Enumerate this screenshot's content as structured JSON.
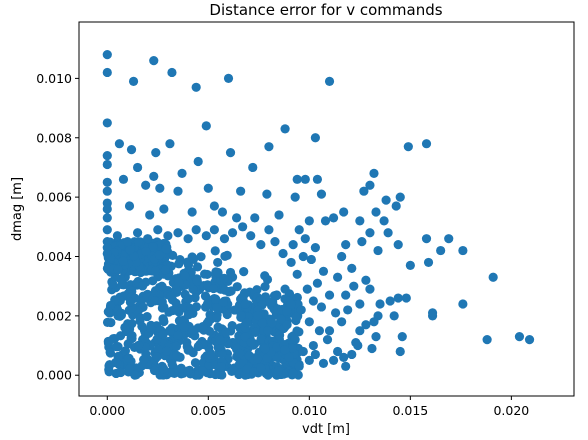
{
  "chart_data": {
    "type": "scatter",
    "title": "Distance error for v commands",
    "xlabel": "vdt [m]",
    "ylabel": "dmag [m]",
    "xlim": [
      -0.0014,
      0.0231
    ],
    "ylim": [
      -0.0007,
      0.0119
    ],
    "xticks": [
      0.0,
      0.005,
      0.01,
      0.015,
      0.02
    ],
    "xtick_labels": [
      "0.000",
      "0.005",
      "0.010",
      "0.015",
      "0.020"
    ],
    "yticks": [
      0.0,
      0.002,
      0.004,
      0.006,
      0.008,
      0.01
    ],
    "ytick_labels": [
      "0.000",
      "0.002",
      "0.004",
      "0.006",
      "0.008",
      "0.010"
    ],
    "grid": false,
    "legend": "none",
    "marker_color": "#1f77b4",
    "series": [
      {
        "points": [
          [
            0.0,
            0.0108
          ],
          [
            0.0,
            0.0102
          ],
          [
            0.0023,
            0.0106
          ],
          [
            0.0032,
            0.0102
          ],
          [
            0.0013,
            0.0099
          ],
          [
            0.0044,
            0.0097
          ],
          [
            0.006,
            0.01
          ],
          [
            0.011,
            0.0099
          ],
          [
            0.0,
            0.0085
          ],
          [
            0.0049,
            0.0084
          ],
          [
            0.0088,
            0.0083
          ],
          [
            0.0103,
            0.008
          ],
          [
            0.0031,
            0.0078
          ],
          [
            0.0006,
            0.0078
          ],
          [
            0.0012,
            0.0076
          ],
          [
            0.0024,
            0.0075
          ],
          [
            0.0061,
            0.0075
          ],
          [
            0.008,
            0.0077
          ],
          [
            0.0,
            0.0074
          ],
          [
            0.0,
            0.0071
          ],
          [
            0.0158,
            0.0078
          ],
          [
            0.0149,
            0.0077
          ],
          [
            0.0045,
            0.0072
          ],
          [
            0.0037,
            0.0068
          ],
          [
            0.0015,
            0.007
          ],
          [
            0.0023,
            0.0067
          ],
          [
            0.0072,
            0.007
          ],
          [
            0.0094,
            0.0066
          ],
          [
            0.0098,
            0.0066
          ],
          [
            0.0104,
            0.0066
          ],
          [
            0.0132,
            0.0068
          ],
          [
            0.013,
            0.0064
          ],
          [
            0.0127,
            0.0062
          ],
          [
            0.0,
            0.0065
          ],
          [
            0.0,
            0.0062
          ],
          [
            0.0008,
            0.0066
          ],
          [
            0.0019,
            0.0064
          ],
          [
            0.0026,
            0.0063
          ],
          [
            0.0035,
            0.0062
          ],
          [
            0.005,
            0.0063
          ],
          [
            0.0066,
            0.0062
          ],
          [
            0.0079,
            0.0061
          ],
          [
            0.0093,
            0.006
          ],
          [
            0.0106,
            0.0061
          ],
          [
            0.0138,
            0.0059
          ],
          [
            0.0145,
            0.006
          ],
          [
            0.0143,
            0.0057
          ],
          [
            0.0133,
            0.0055
          ],
          [
            0.0125,
            0.0052
          ],
          [
            0.0137,
            0.0052
          ],
          [
            0.0117,
            0.0055
          ],
          [
            0.0112,
            0.0053
          ],
          [
            0.0,
            0.0058
          ],
          [
            0.0,
            0.0056
          ],
          [
            0.0,
            0.0053
          ],
          [
            0.0011,
            0.0057
          ],
          [
            0.0021,
            0.0054
          ],
          [
            0.0028,
            0.0056
          ],
          [
            0.0042,
            0.0055
          ],
          [
            0.0053,
            0.0057
          ],
          [
            0.0057,
            0.0055
          ],
          [
            0.0064,
            0.0053
          ],
          [
            0.0073,
            0.0053
          ],
          [
            0.0085,
            0.0054
          ],
          [
            0.01,
            0.0052
          ],
          [
            0.0108,
            0.0052
          ],
          [
            0.0158,
            0.0046
          ],
          [
            0.0169,
            0.0046
          ],
          [
            0.0165,
            0.0042
          ],
          [
            0.0176,
            0.0042
          ],
          [
            0.0191,
            0.0033
          ],
          [
            0.015,
            0.0037
          ],
          [
            0.0144,
            0.0044
          ],
          [
            0.0159,
            0.0038
          ],
          [
            0.0139,
            0.0048
          ],
          [
            0.013,
            0.0048
          ],
          [
            0.0126,
            0.0045
          ],
          [
            0.0134,
            0.0042
          ],
          [
            0.0118,
            0.0044
          ],
          [
            0.0116,
            0.004
          ],
          [
            0.0121,
            0.0036
          ],
          [
            0.0128,
            0.0032
          ],
          [
            0.013,
            0.0029
          ],
          [
            0.0122,
            0.003
          ],
          [
            0.0114,
            0.0033
          ],
          [
            0.0118,
            0.0027
          ],
          [
            0.0125,
            0.0024
          ],
          [
            0.0135,
            0.0024
          ],
          [
            0.0134,
            0.002
          ],
          [
            0.014,
            0.0025
          ],
          [
            0.0144,
            0.0026
          ],
          [
            0.0148,
            0.0026
          ],
          [
            0.0142,
            0.002
          ],
          [
            0.0161,
            0.002
          ],
          [
            0.0176,
            0.0024
          ],
          [
            0.0161,
            0.0021
          ],
          [
            0.0132,
            0.0018
          ],
          [
            0.0128,
            0.0017
          ],
          [
            0.0125,
            0.0015
          ],
          [
            0.0133,
            0.0013
          ],
          [
            0.0146,
            0.0013
          ],
          [
            0.0124,
            0.001
          ],
          [
            0.0131,
            0.0009
          ],
          [
            0.0145,
            0.0008
          ],
          [
            0.0121,
            0.0007
          ],
          [
            0.0117,
            0.0006
          ],
          [
            0.0112,
            0.0005
          ],
          [
            0.0107,
            0.0004
          ],
          [
            0.0118,
            0.0003
          ],
          [
            0.0123,
            0.0011
          ],
          [
            0.0188,
            0.0012
          ],
          [
            0.0204,
            0.0013
          ],
          [
            0.0209,
            0.0012
          ],
          [
            0.0113,
            0.0021
          ],
          [
            0.0106,
            0.0023
          ],
          [
            0.011,
            0.0027
          ],
          [
            0.0104,
            0.0031
          ],
          [
            0.0107,
            0.0035
          ],
          [
            0.0101,
            0.0039
          ],
          [
            0.0103,
            0.0043
          ],
          [
            0.0098,
            0.0046
          ],
          [
            0.0095,
            0.0049
          ],
          [
            0.0092,
            0.0044
          ],
          [
            0.0097,
            0.004
          ],
          [
            0.0091,
            0.0038
          ],
          [
            0.0087,
            0.0041
          ],
          [
            0.0083,
            0.0045
          ],
          [
            0.008,
            0.0049
          ],
          [
            0.0076,
            0.0044
          ],
          [
            0.0071,
            0.0047
          ],
          [
            0.0067,
            0.005
          ],
          [
            0.0062,
            0.0048
          ],
          [
            0.0058,
            0.0046
          ],
          [
            0.0053,
            0.0049
          ],
          [
            0.0049,
            0.0047
          ],
          [
            0.0044,
            0.0049
          ],
          [
            0.004,
            0.0046
          ],
          [
            0.0035,
            0.0048
          ],
          [
            0.003,
            0.0047
          ],
          [
            0.0025,
            0.0049
          ],
          [
            0.002,
            0.0046
          ],
          [
            0.0015,
            0.0048
          ],
          [
            0.001,
            0.0045
          ],
          [
            0.0005,
            0.0047
          ],
          [
            0.0,
            0.0049
          ],
          [
            0.0,
            0.0045
          ],
          [
            0.0,
            0.0043
          ],
          [
            0.0,
            0.0041
          ],
          [
            0.0094,
            0.0034
          ],
          [
            0.0099,
            0.0029
          ],
          [
            0.0102,
            0.0025
          ],
          [
            0.0096,
            0.0022
          ],
          [
            0.01,
            0.0018
          ],
          [
            0.0105,
            0.0015
          ],
          [
            0.0109,
            0.0012
          ],
          [
            0.0102,
            0.001
          ],
          [
            0.0097,
            0.0008
          ],
          [
            0.01,
            0.0005
          ],
          [
            0.0095,
            0.0003
          ],
          [
            0.009,
            0.0006
          ],
          [
            0.0093,
            0.0012
          ],
          [
            0.0089,
            0.0017
          ],
          [
            0.0091,
            0.0024
          ],
          [
            0.0088,
            0.0029
          ],
          [
            0.0103,
            0.0007
          ],
          [
            0.0114,
            0.0008
          ],
          [
            0.011,
            0.0015
          ],
          [
            0.0116,
            0.0018
          ],
          [
            0.0119,
            0.0022
          ]
        ],
        "dense_clusters": [
          {
            "x_range": [
              0.0,
              0.0085
            ],
            "y_range": [
              0.0,
              0.0035
            ]
          },
          {
            "x_range": [
              0.0,
              0.006
            ],
            "y_range": [
              0.0,
              0.0042
            ]
          },
          {
            "x_range": [
              0.0065,
              0.0095
            ],
            "y_range": [
              0.0,
              0.0028
            ]
          },
          {
            "x_range": [
              0.0,
              0.003
            ],
            "y_range": [
              0.0035,
              0.0045
            ]
          }
        ]
      }
    ]
  }
}
